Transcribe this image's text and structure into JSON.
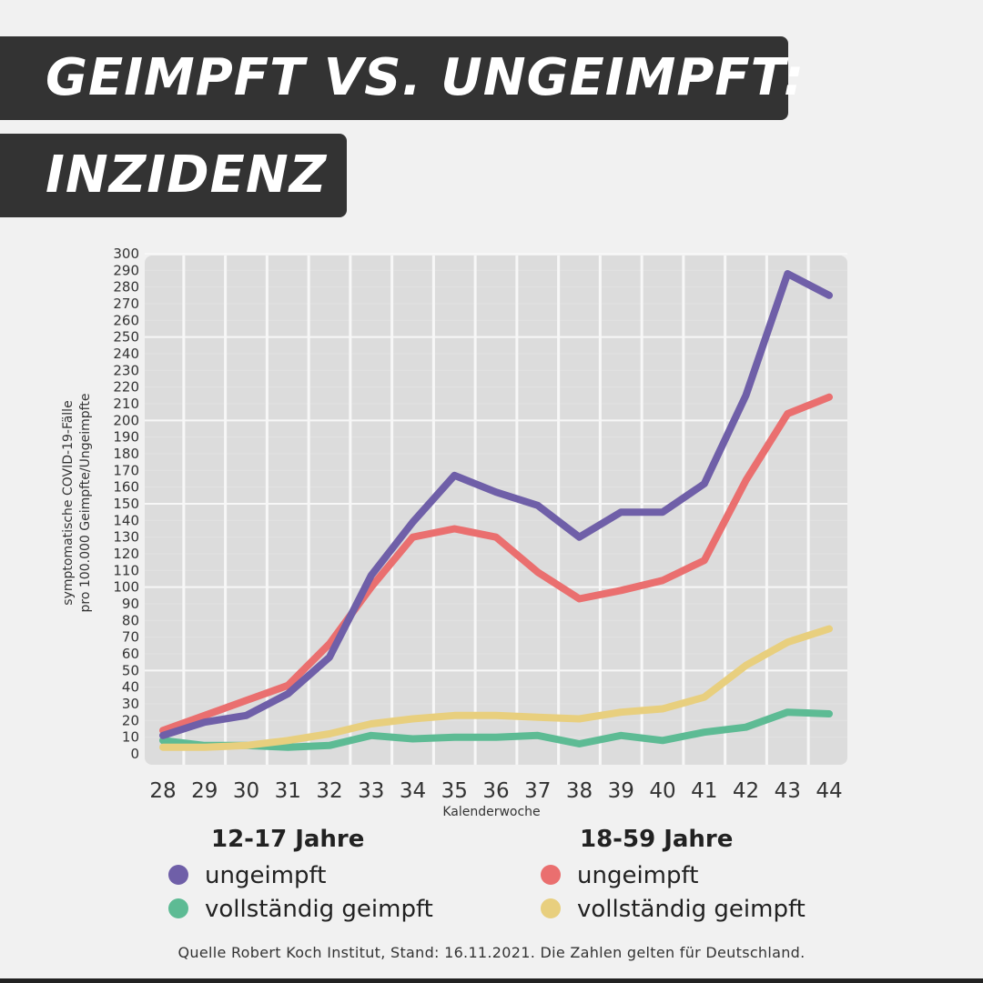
{
  "title_line1": "GEIMPFT VS. UNGEIMPFT:",
  "title_line2": "INZIDENZ",
  "source": "Quelle Robert Koch Institut, Stand: 16.11.2021. Die Zahlen gelten für Deutschland.",
  "legend": {
    "group1": {
      "heading": "12-17 Jahre",
      "items": [
        {
          "label": "ungeimpft",
          "color": "#6f5fa8"
        },
        {
          "label": "vollständig geimpft",
          "color": "#5dbb94"
        }
      ]
    },
    "group2": {
      "heading": "18-59 Jahre",
      "items": [
        {
          "label": "ungeimpft",
          "color": "#ea6f6f"
        },
        {
          "label": "vollständig geimpft",
          "color": "#e8cf7e"
        }
      ]
    }
  },
  "chart_data": {
    "type": "line",
    "title": "GEIMPFT VS. UNGEIMPFT: INZIDENZ",
    "xlabel": "Kalenderwoche",
    "ylabel": "symptomatische COVID-19-Fälle pro 100.000 Geimpfte/Ungeimpfte",
    "ylabel_lines": [
      "symptomatische COVID-19-Fälle",
      "pro 100.000 Geimpfte/Ungeimpfte"
    ],
    "x": [
      28,
      29,
      30,
      31,
      32,
      33,
      34,
      35,
      36,
      37,
      38,
      39,
      40,
      41,
      42,
      43,
      44
    ],
    "xlim": [
      28,
      44
    ],
    "ylim": [
      0,
      300
    ],
    "yticks": [
      0,
      10,
      20,
      30,
      40,
      50,
      60,
      70,
      80,
      90,
      100,
      110,
      120,
      130,
      140,
      150,
      160,
      170,
      180,
      190,
      200,
      210,
      220,
      230,
      240,
      250,
      260,
      270,
      280,
      290,
      300
    ],
    "grid": true,
    "legend_position": "bottom",
    "series": [
      {
        "name": "12-17 Jahre ungeimpft",
        "color": "#6f5fa8",
        "values": [
          11,
          19,
          23,
          36,
          58,
          107,
          139,
          167,
          157,
          149,
          130,
          145,
          145,
          162,
          215,
          288,
          275
        ]
      },
      {
        "name": "18-59 Jahre ungeimpft",
        "color": "#ea6f6f",
        "values": [
          14,
          23,
          32,
          41,
          66,
          100,
          130,
          135,
          130,
          109,
          93,
          98,
          104,
          116,
          164,
          204,
          214
        ]
      },
      {
        "name": "18-59 Jahre vollständig geimpft",
        "color": "#e8cf7e",
        "values": [
          4,
          4,
          5,
          8,
          12,
          18,
          21,
          23,
          23,
          22,
          21,
          25,
          27,
          34,
          53,
          67,
          75
        ]
      },
      {
        "name": "12-17 Jahre vollständig geimpft",
        "color": "#5dbb94",
        "values": [
          8,
          5,
          5,
          4,
          5,
          11,
          9,
          10,
          10,
          11,
          6,
          11,
          8,
          13,
          16,
          25,
          24
        ]
      }
    ]
  }
}
